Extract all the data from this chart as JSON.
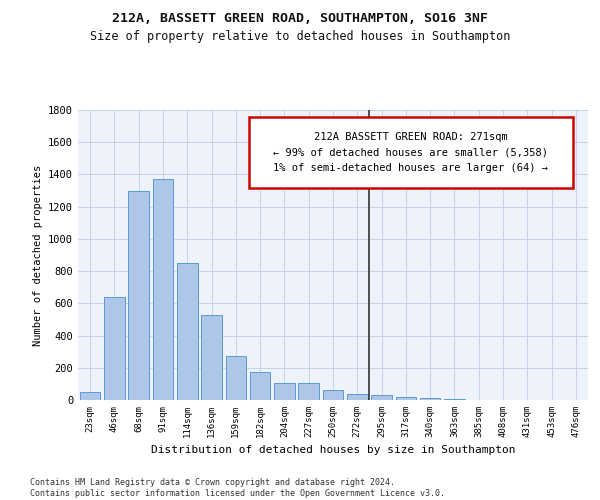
{
  "title1": "212A, BASSETT GREEN ROAD, SOUTHAMPTON, SO16 3NF",
  "title2": "Size of property relative to detached houses in Southampton",
  "xlabel": "Distribution of detached houses by size in Southampton",
  "ylabel": "Number of detached properties",
  "bar_labels": [
    "23sqm",
    "46sqm",
    "68sqm",
    "91sqm",
    "114sqm",
    "136sqm",
    "159sqm",
    "182sqm",
    "204sqm",
    "227sqm",
    "250sqm",
    "272sqm",
    "295sqm",
    "317sqm",
    "340sqm",
    "363sqm",
    "385sqm",
    "408sqm",
    "431sqm",
    "453sqm",
    "476sqm"
  ],
  "bar_values": [
    50,
    640,
    1300,
    1370,
    850,
    525,
    275,
    175,
    105,
    105,
    60,
    35,
    30,
    20,
    15,
    5,
    3,
    2,
    2,
    1,
    1
  ],
  "bar_color": "#aec6e8",
  "bar_edgecolor": "#5b9bd5",
  "vline_x": 11.5,
  "vline_color": "#333333",
  "ylim": [
    0,
    1800
  ],
  "yticks": [
    0,
    200,
    400,
    600,
    800,
    1000,
    1200,
    1400,
    1600,
    1800
  ],
  "annotation_title": "212A BASSETT GREEN ROAD: 271sqm",
  "annotation_line1": "← 99% of detached houses are smaller (5,358)",
  "annotation_line2": "1% of semi-detached houses are larger (64) →",
  "annotation_box_color": "#cc0000",
  "background_color": "#eef2fb",
  "grid_color": "#c8d0e8",
  "footer1": "Contains HM Land Registry data © Crown copyright and database right 2024.",
  "footer2": "Contains public sector information licensed under the Open Government Licence v3.0."
}
